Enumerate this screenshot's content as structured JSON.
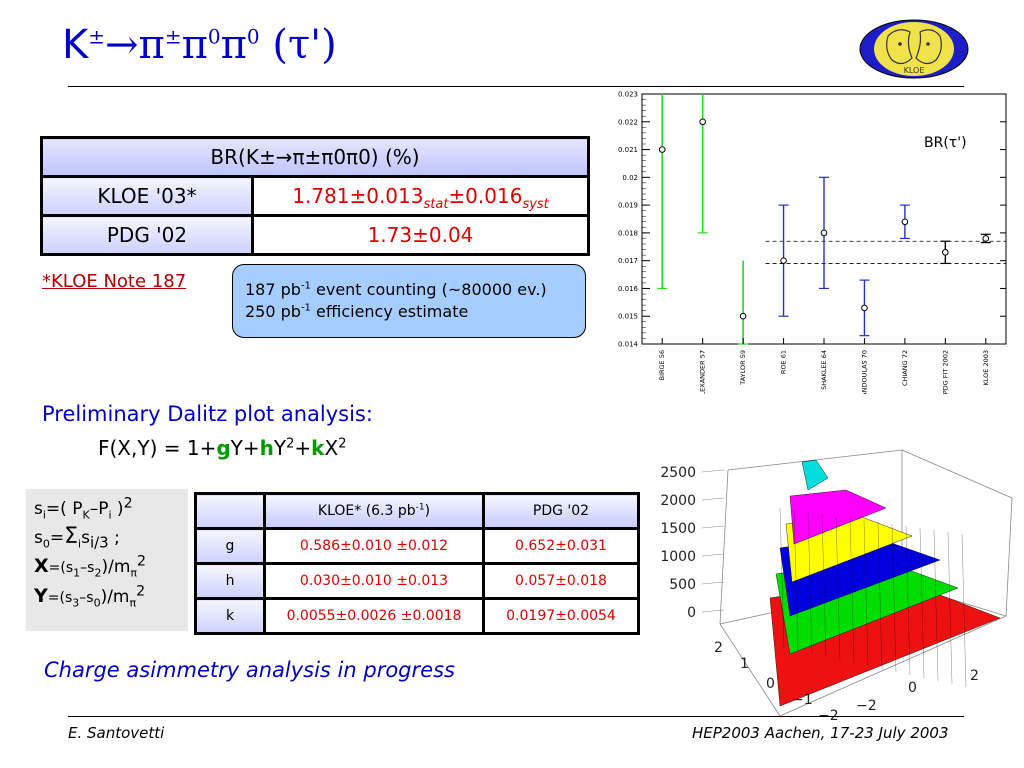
{
  "title": {
    "k": "K",
    "pm": "±",
    "arrow": "→",
    "pi": "π",
    "zero": "0",
    "tau": "(τ')"
  },
  "logo": {
    "text": "KLOE"
  },
  "br_table": {
    "header": "BR(K±→π±π0π0) (%)",
    "rows": [
      {
        "label": "KLOE '03*",
        "value_main": "1.781±0.013",
        "stat": "stat",
        "value_syst": "±0.016",
        "syst": "syst"
      },
      {
        "label": "PDG '02",
        "value_main": "1.73±0.04"
      }
    ]
  },
  "note_link": "*KLOE Note 187",
  "info_box": {
    "line1_a": "187 pb",
    "line1_sup": "-1",
    "line1_b": " event counting (~80000 ev.)",
    "line2_a": "250 pb",
    "line2_sup": "-1",
    "line2_b": " efficiency estimate"
  },
  "chart_data": [
    {
      "type": "scatter",
      "title": "BR(τ')",
      "categories": [
        "BIRGE 56",
        "ALEXANDER 57",
        "TAYLOR 59",
        "ROE 61",
        "SHAKLEE 64",
        "PANDOULAS 70",
        "CHIANG 72",
        "PDG FIT 2002",
        "KLOE 2003"
      ],
      "values": [
        0.021,
        0.022,
        0.015,
        0.017,
        0.018,
        0.0153,
        0.0184,
        0.0173,
        0.0178
      ],
      "errors_low": [
        0.0,
        0.0,
        0.0,
        0.002,
        0.002,
        0.001,
        0.0006,
        0.0004,
        0.00015
      ],
      "errors_high": [
        0.0,
        0.0,
        0.0,
        0.002,
        0.002,
        0.001,
        0.0006,
        0.0004,
        0.00015
      ],
      "markers_green": [
        0,
        1,
        2
      ],
      "green_bars": [
        [
          0.016,
          0.023
        ],
        [
          0.018,
          0.023
        ],
        [
          0.014,
          0.017
        ]
      ],
      "bands": [
        0.0177,
        0.0169
      ],
      "ylim": [
        0.014,
        0.023
      ],
      "yticks": [
        "0.014",
        "0.015",
        "0.016",
        "0.017",
        "0.018",
        "0.019",
        "0.02",
        "0.021",
        "0.022",
        "0.023"
      ],
      "colors": {
        "green": "#22dd22",
        "blue": "#2233cc"
      }
    },
    {
      "type": "heatmap",
      "title": "",
      "zticks": [
        "0",
        "500",
        "1000",
        "1500",
        "2000",
        "2500"
      ],
      "xticks": [
        "−2",
        "0",
        "2"
      ],
      "yticks": [
        "2",
        "1",
        "0",
        "−1",
        "−2"
      ],
      "layer_colors": [
        "#ee1111",
        "#00dd00",
        "#0000dd",
        "#ffff00",
        "#ff00ff",
        "#00dddd"
      ]
    }
  ],
  "dalitz": {
    "title": "Preliminary Dalitz plot analysis:",
    "formula": {
      "pre": "F(X,Y) = 1+",
      "g": "g",
      "y1": "Y+",
      "h": "h",
      "y2": "Y",
      "sq1": "2",
      "plus": "+",
      "k": "k",
      "x": "X",
      "sq2": "2"
    }
  },
  "definitions": {
    "l1": {
      "a": "s",
      "i": "i",
      "b": "=( P",
      "K": "K",
      "c": "–P",
      "i2": "i",
      "d": " )",
      "sq": "2"
    },
    "l2": {
      "a": "s",
      "zero": "0",
      "b": "=",
      "sum": "Σ",
      "i": "i",
      "c": "s",
      "sub": "i/3",
      "d": " ;"
    },
    "l3": {
      "X": "X",
      "a": "=(s",
      "one": "1",
      "b": "–s",
      "two": "2",
      "c": ")/m",
      "pi": "π",
      "sq": "2"
    },
    "l4": {
      "Y": "Y",
      "a": "=(s",
      "three": "3",
      "b": "–s",
      "zero": "0",
      "c": ")/m",
      "pi": "π",
      "sq": "2"
    }
  },
  "param_table": {
    "col_kloe_a": "KLOE* (6.3 pb",
    "col_kloe_sup": "-1",
    "col_kloe_b": ")",
    "col_pdg": "PDG '02",
    "rows": [
      {
        "label": "g",
        "kloe": "0.586±0.010 ±0.012",
        "pdg": "0.652±0.031"
      },
      {
        "label": "h",
        "kloe": "0.030±0.010 ±0.013",
        "pdg": "0.057±0.018"
      },
      {
        "label": "k",
        "kloe": "0.0055±0.0026 ±0.0018",
        "pdg": "0.0197±0.0054"
      }
    ]
  },
  "charge_text": "Charge asimmetry analysis in progress",
  "footer": {
    "author": "E. Santovetti",
    "conference": "HEP2003 Aachen, 17-23 July 2003"
  }
}
